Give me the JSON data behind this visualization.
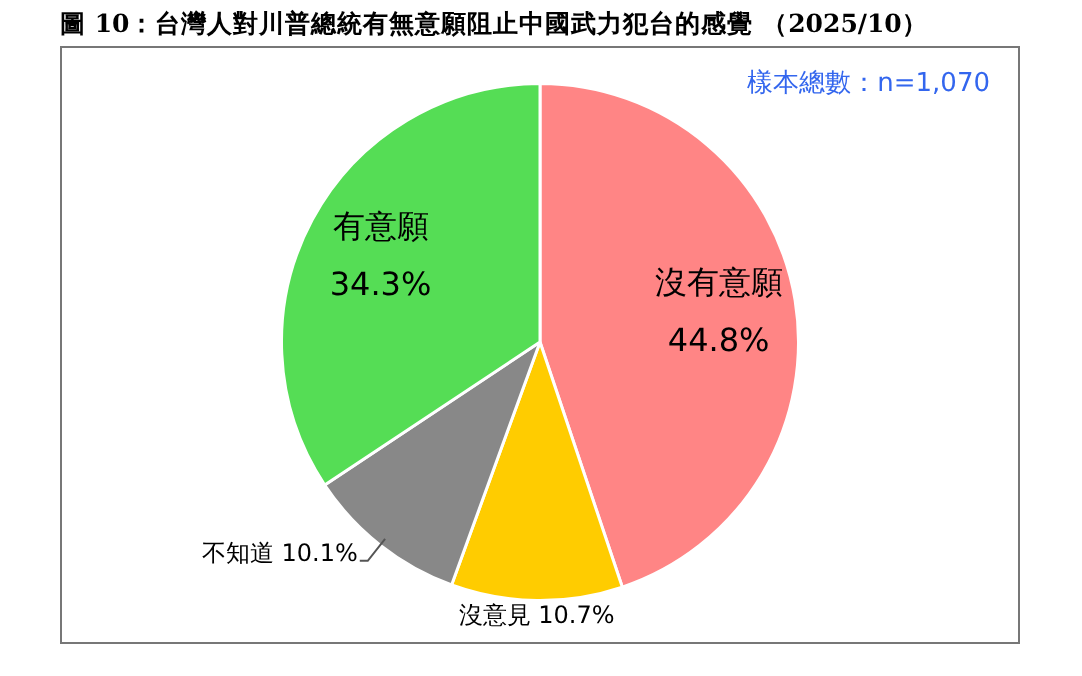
{
  "chart_data": {
    "type": "pie",
    "title": "圖 10：台灣人對川普總統有無意願阻止中國武力犯台的感覺 （2025/10）",
    "categories": [
      "沒有意願",
      "沒意見",
      "不知道",
      "有意願"
    ],
    "values": [
      44.8,
      10.7,
      10.1,
      34.3
    ],
    "value_labels": [
      "44.8%",
      "10.7%",
      "10.1%",
      "34.3%"
    ],
    "colors": [
      "#ff8585",
      "#ffcc00",
      "#888888",
      "#55dd55"
    ],
    "annotations": [
      "樣本總數：n=1,070"
    ],
    "legend": false
  }
}
